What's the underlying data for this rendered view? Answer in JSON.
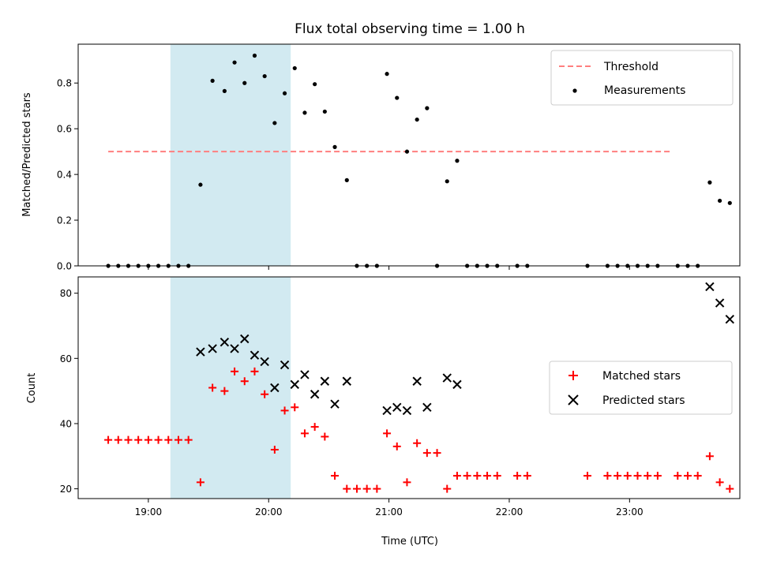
{
  "chart_data": {
    "title": "Flux total observing time = 1.00 h",
    "x_label": "Time (UTC)",
    "x_ticks": [
      "19:00",
      "20:00",
      "21:00",
      "22:00",
      "23:00"
    ],
    "x_range": [
      "18:25",
      "23:55"
    ],
    "shaded_interval": [
      "19:11",
      "20:11"
    ],
    "colors": {
      "shade": "#add8e6",
      "threshold": "#ff7f7f",
      "matched": "#ff0000",
      "predicted": "#000000",
      "measurement": "#000000"
    },
    "top": {
      "type": "scatter",
      "y_label": "Matched/Predicted stars",
      "ylim": [
        0,
        0.97
      ],
      "y_ticks": [
        "0.0",
        "0.2",
        "0.4",
        "0.6",
        "0.8"
      ],
      "legend": {
        "placement": "top-right",
        "threshold": "Threshold",
        "measurements": "Measurements"
      },
      "threshold": {
        "value": 0.5,
        "x_start": "18:40",
        "x_end": "23:20"
      },
      "measurements": [
        [
          "18:40",
          0
        ],
        [
          "18:45",
          0
        ],
        [
          "18:50",
          0
        ],
        [
          "18:55",
          0
        ],
        [
          "19:00",
          0
        ],
        [
          "19:05",
          0
        ],
        [
          "19:10",
          0
        ],
        [
          "19:15",
          0
        ],
        [
          "19:20",
          0
        ],
        [
          "19:26",
          0.355
        ],
        [
          "19:32",
          0.81
        ],
        [
          "19:38",
          0.765
        ],
        [
          "19:43",
          0.89
        ],
        [
          "19:48",
          0.8
        ],
        [
          "19:53",
          0.92
        ],
        [
          "19:58",
          0.83
        ],
        [
          "20:03",
          0.625
        ],
        [
          "20:08",
          0.755
        ],
        [
          "20:13",
          0.865
        ],
        [
          "20:18",
          0.67
        ],
        [
          "20:23",
          0.795
        ],
        [
          "20:28",
          0.675
        ],
        [
          "20:33",
          0.52
        ],
        [
          "20:39",
          0.375
        ],
        [
          "20:44",
          0
        ],
        [
          "20:49",
          0
        ],
        [
          "20:54",
          0
        ],
        [
          "20:59",
          0.84
        ],
        [
          "21:04",
          0.735
        ],
        [
          "21:09",
          0.5
        ],
        [
          "21:14",
          0.64
        ],
        [
          "21:19",
          0.69
        ],
        [
          "21:24",
          0
        ],
        [
          "21:29",
          0.37
        ],
        [
          "21:34",
          0.46
        ],
        [
          "21:39",
          0
        ],
        [
          "21:44",
          0
        ],
        [
          "21:49",
          0
        ],
        [
          "21:54",
          0
        ],
        [
          "22:04",
          0
        ],
        [
          "22:09",
          0
        ],
        [
          "22:39",
          0
        ],
        [
          "22:49",
          0
        ],
        [
          "22:54",
          0
        ],
        [
          "22:59",
          0
        ],
        [
          "23:04",
          0
        ],
        [
          "23:09",
          0
        ],
        [
          "23:14",
          0
        ],
        [
          "23:24",
          0
        ],
        [
          "23:29",
          0
        ],
        [
          "23:34",
          0
        ],
        [
          "23:40",
          0.365
        ],
        [
          "23:45",
          0.285
        ],
        [
          "23:50",
          0.275
        ]
      ]
    },
    "bottom": {
      "type": "scatter",
      "y_label": "Count",
      "ylim": [
        17,
        85
      ],
      "y_ticks": [
        "20",
        "40",
        "60",
        "80"
      ],
      "legend": {
        "placement": "center-right",
        "matched": "Matched stars",
        "predicted": "Predicted stars"
      },
      "matched": [
        [
          "18:40",
          35
        ],
        [
          "18:45",
          35
        ],
        [
          "18:50",
          35
        ],
        [
          "18:55",
          35
        ],
        [
          "19:00",
          35
        ],
        [
          "19:05",
          35
        ],
        [
          "19:10",
          35
        ],
        [
          "19:15",
          35
        ],
        [
          "19:20",
          35
        ],
        [
          "19:26",
          22
        ],
        [
          "19:32",
          51
        ],
        [
          "19:38",
          50
        ],
        [
          "19:43",
          56
        ],
        [
          "19:48",
          53
        ],
        [
          "19:53",
          56
        ],
        [
          "19:58",
          49
        ],
        [
          "20:03",
          32
        ],
        [
          "20:08",
          44
        ],
        [
          "20:13",
          45
        ],
        [
          "20:18",
          37
        ],
        [
          "20:23",
          39
        ],
        [
          "20:28",
          36
        ],
        [
          "20:33",
          24
        ],
        [
          "20:39",
          20
        ],
        [
          "20:44",
          20
        ],
        [
          "20:49",
          20
        ],
        [
          "20:54",
          20
        ],
        [
          "20:59",
          37
        ],
        [
          "21:04",
          33
        ],
        [
          "21:09",
          22
        ],
        [
          "21:14",
          34
        ],
        [
          "21:19",
          31
        ],
        [
          "21:24",
          31
        ],
        [
          "21:29",
          20
        ],
        [
          "21:34",
          24
        ],
        [
          "21:39",
          24
        ],
        [
          "21:44",
          24
        ],
        [
          "21:49",
          24
        ],
        [
          "21:54",
          24
        ],
        [
          "22:04",
          24
        ],
        [
          "22:09",
          24
        ],
        [
          "22:39",
          24
        ],
        [
          "22:49",
          24
        ],
        [
          "22:54",
          24
        ],
        [
          "22:59",
          24
        ],
        [
          "23:04",
          24
        ],
        [
          "23:09",
          24
        ],
        [
          "23:14",
          24
        ],
        [
          "23:24",
          24
        ],
        [
          "23:29",
          24
        ],
        [
          "23:34",
          24
        ],
        [
          "23:40",
          30
        ],
        [
          "23:45",
          22
        ],
        [
          "23:50",
          20
        ]
      ],
      "predicted": [
        [
          "19:26",
          62
        ],
        [
          "19:32",
          63
        ],
        [
          "19:38",
          65
        ],
        [
          "19:43",
          63
        ],
        [
          "19:48",
          66
        ],
        [
          "19:53",
          61
        ],
        [
          "19:58",
          59
        ],
        [
          "20:03",
          51
        ],
        [
          "20:08",
          58
        ],
        [
          "20:13",
          52
        ],
        [
          "20:18",
          55
        ],
        [
          "20:23",
          49
        ],
        [
          "20:28",
          53
        ],
        [
          "20:33",
          46
        ],
        [
          "20:39",
          53
        ],
        [
          "20:59",
          44
        ],
        [
          "21:04",
          45
        ],
        [
          "21:09",
          44
        ],
        [
          "21:14",
          53
        ],
        [
          "21:19",
          45
        ],
        [
          "21:29",
          54
        ],
        [
          "21:34",
          52
        ],
        [
          "23:40",
          82
        ],
        [
          "23:45",
          77
        ],
        [
          "23:50",
          72
        ]
      ]
    }
  }
}
